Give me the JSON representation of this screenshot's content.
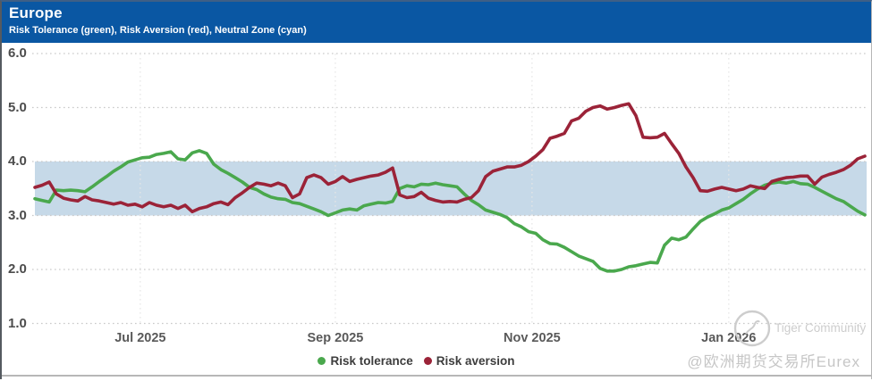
{
  "header": {
    "title": "Europe",
    "subtitle": "Risk Tolerance (green), Risk Aversion (red), Neutral Zone (cyan)"
  },
  "chart_data": {
    "type": "line",
    "title": "Europe",
    "subtitle": "Risk Tolerance (green), Risk Aversion (red), Neutral Zone (cyan)",
    "ylim": [
      1.0,
      6.0
    ],
    "y_ticks": [
      "6.0",
      "5.0",
      "4.0",
      "3.0",
      "2.0",
      "1.0"
    ],
    "x_ticks": [
      {
        "label": "Jul 2025",
        "pos": 0.127
      },
      {
        "label": "Sep 2025",
        "pos": 0.362
      },
      {
        "label": "Nov 2025",
        "pos": 0.599
      },
      {
        "label": "Jan 2026",
        "pos": 0.836
      }
    ],
    "grid": "dotted",
    "legend_position": "bottom-center",
    "neutral_zone": {
      "from": 3.0,
      "to": 4.0,
      "color": "#c6d9e8",
      "label": "Neutral Zone (cyan)"
    },
    "series": [
      {
        "name": "Risk tolerance",
        "color": "#4aa84d",
        "values": [
          3.31,
          3.28,
          3.25,
          3.47,
          3.46,
          3.47,
          3.46,
          3.44,
          3.53,
          3.63,
          3.72,
          3.82,
          3.9,
          3.99,
          4.03,
          4.07,
          4.08,
          4.13,
          4.15,
          4.18,
          4.05,
          4.03,
          4.16,
          4.2,
          4.15,
          3.95,
          3.85,
          3.78,
          3.7,
          3.62,
          3.52,
          3.48,
          3.4,
          3.34,
          3.31,
          3.3,
          3.24,
          3.22,
          3.17,
          3.12,
          3.07,
          3.0,
          3.05,
          3.1,
          3.12,
          3.1,
          3.18,
          3.21,
          3.24,
          3.23,
          3.26,
          3.5,
          3.55,
          3.53,
          3.58,
          3.57,
          3.6,
          3.57,
          3.55,
          3.53,
          3.4,
          3.28,
          3.2,
          3.1,
          3.06,
          3.02,
          2.96,
          2.85,
          2.79,
          2.7,
          2.67,
          2.55,
          2.48,
          2.47,
          2.41,
          2.33,
          2.25,
          2.2,
          2.15,
          2.02,
          1.97,
          1.97,
          2.0,
          2.05,
          2.07,
          2.1,
          2.13,
          2.12,
          2.45,
          2.58,
          2.55,
          2.6,
          2.75,
          2.89,
          2.97,
          3.03,
          3.1,
          3.14,
          3.22,
          3.3,
          3.4,
          3.49,
          3.56,
          3.6,
          3.62,
          3.6,
          3.63,
          3.59,
          3.58,
          3.52,
          3.45,
          3.38,
          3.31,
          3.26,
          3.17,
          3.08,
          3.01
        ]
      },
      {
        "name": "Risk aversion",
        "color": "#9b2338",
        "values": [
          3.52,
          3.56,
          3.62,
          3.4,
          3.32,
          3.29,
          3.27,
          3.35,
          3.29,
          3.27,
          3.24,
          3.21,
          3.24,
          3.19,
          3.21,
          3.16,
          3.24,
          3.19,
          3.16,
          3.19,
          3.13,
          3.19,
          3.07,
          3.13,
          3.16,
          3.22,
          3.25,
          3.2,
          3.33,
          3.42,
          3.52,
          3.6,
          3.58,
          3.55,
          3.6,
          3.55,
          3.33,
          3.4,
          3.7,
          3.75,
          3.7,
          3.58,
          3.63,
          3.72,
          3.63,
          3.67,
          3.7,
          3.73,
          3.75,
          3.8,
          3.88,
          3.38,
          3.33,
          3.35,
          3.43,
          3.32,
          3.28,
          3.25,
          3.26,
          3.25,
          3.3,
          3.33,
          3.46,
          3.72,
          3.82,
          3.86,
          3.9,
          3.9,
          3.93,
          4.0,
          4.1,
          4.22,
          4.43,
          4.47,
          4.52,
          4.75,
          4.8,
          4.93,
          5.0,
          5.03,
          4.97,
          5.0,
          5.04,
          5.07,
          4.85,
          4.45,
          4.44,
          4.45,
          4.52,
          4.33,
          4.15,
          3.9,
          3.7,
          3.46,
          3.45,
          3.49,
          3.52,
          3.49,
          3.46,
          3.49,
          3.55,
          3.52,
          3.5,
          3.63,
          3.67,
          3.7,
          3.71,
          3.73,
          3.73,
          3.58,
          3.71,
          3.76,
          3.8,
          3.85,
          3.93,
          4.05,
          4.1
        ]
      }
    ]
  },
  "legend": {
    "items": [
      {
        "label": "Risk tolerance",
        "color": "#4aa84d"
      },
      {
        "label": "Risk aversion",
        "color": "#9b2338"
      }
    ]
  },
  "watermark": {
    "community": "Tiger Community",
    "handle": "@欧洲期货交易所Eurex"
  },
  "colors": {
    "header_bg": "#0a57a3",
    "band": "#c6d9e8",
    "green": "#4aa84d",
    "red": "#9b2338",
    "grid": "#c9c9c9",
    "tick_text": "#595959",
    "legend_text": "#3d3d3d",
    "watermark": "#cdcdcd"
  }
}
